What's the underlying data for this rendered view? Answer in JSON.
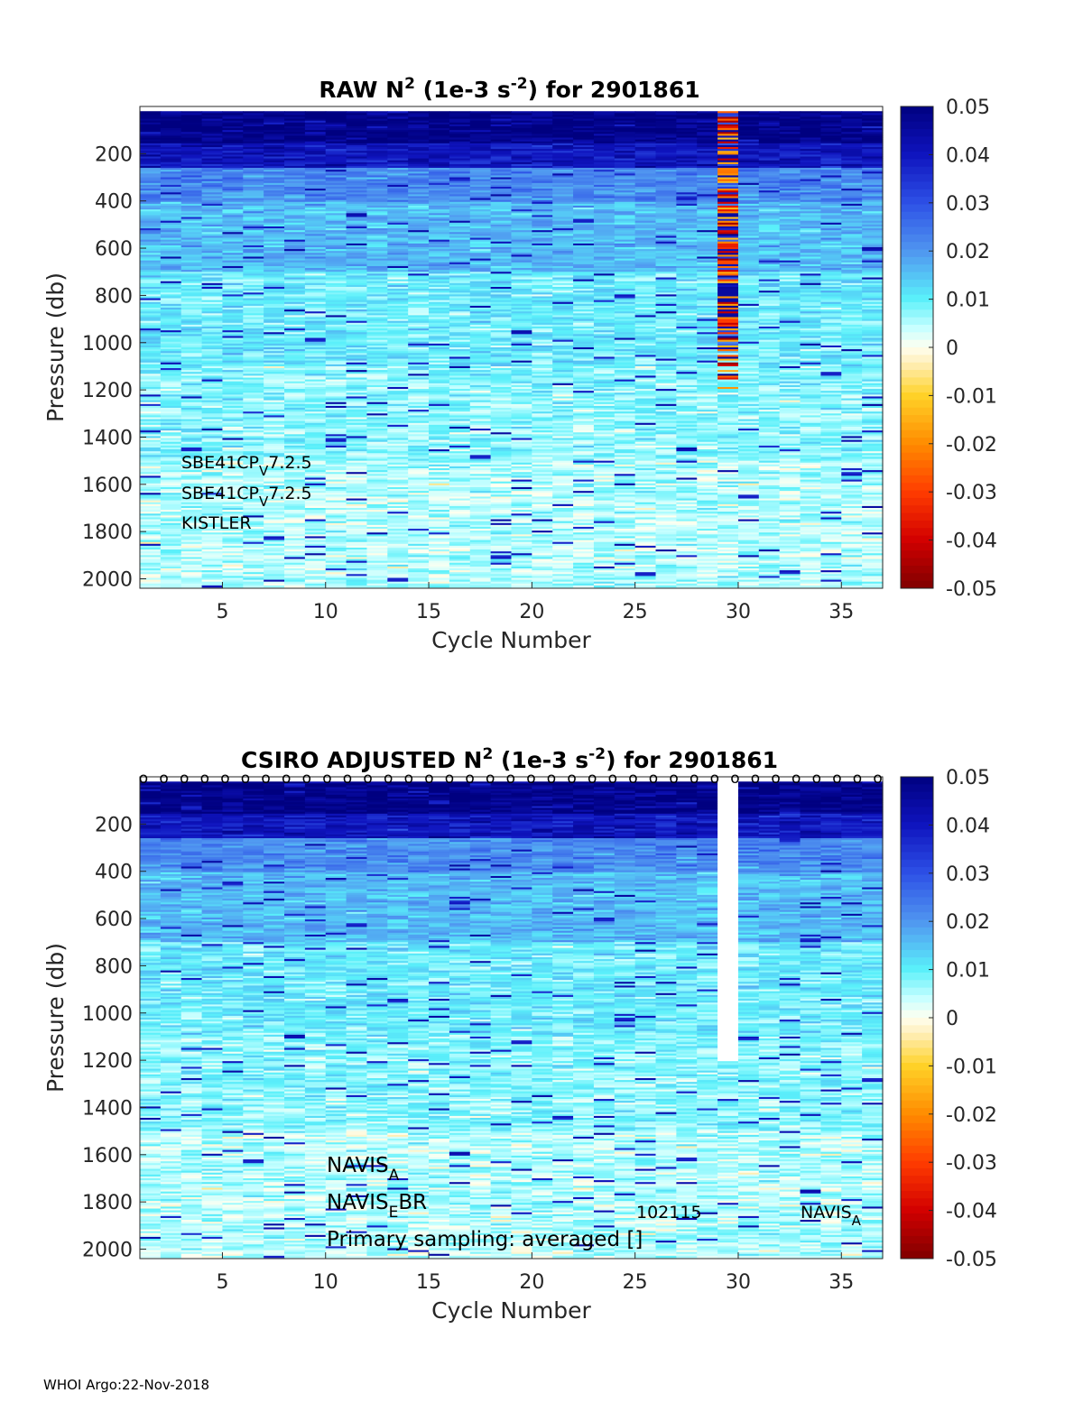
{
  "footer": "WHOI Argo:22-Nov-2018",
  "chart_data": [
    {
      "type": "heatmap",
      "title": {
        "prefix": "RAW N",
        "sup1": "2",
        "mid": " (1e-3 s",
        "sup2": "-2",
        "suffix": ") for 2901861"
      },
      "xlabel": "Cycle Number",
      "ylabel": "Pressure (db)",
      "xlim": [
        1,
        37
      ],
      "ylim": [
        2040,
        0
      ],
      "xticks": [
        5,
        10,
        15,
        20,
        25,
        30,
        35
      ],
      "yticks": [
        200,
        400,
        600,
        800,
        1000,
        1200,
        1400,
        1600,
        1800,
        2000
      ],
      "colorbar": {
        "min": -0.05,
        "max": 0.05,
        "ticks": [
          "0.05",
          "0.04",
          "0.03",
          "0.02",
          "0.01",
          "0",
          "-0.01",
          "-0.02",
          "-0.03",
          "-0.04",
          "-0.05"
        ],
        "colormap": "blue-cyan-white-yellow-red"
      },
      "cycles": 36,
      "anomaly_cycle": 29,
      "annotations": [
        {
          "main": "SBE41CP",
          "sub": "V",
          "rest": "7.2.5"
        },
        {
          "main": "SBE41CP",
          "sub": "V",
          "rest": "7.2.5"
        },
        {
          "main": "KISTLER",
          "sub": "",
          "rest": ""
        }
      ]
    },
    {
      "type": "heatmap",
      "title": {
        "prefix": "CSIRO  ADJUSTED N",
        "sup1": "2",
        "mid": " (1e-3 s",
        "sup2": "-2",
        "suffix": ") for 2901861"
      },
      "xlabel": "Cycle Number",
      "ylabel": "Pressure (db)",
      "xlim": [
        1,
        37
      ],
      "ylim": [
        2040,
        0
      ],
      "xticks": [
        5,
        10,
        15,
        20,
        25,
        30,
        35
      ],
      "yticks": [
        200,
        400,
        600,
        800,
        1000,
        1200,
        1400,
        1600,
        1800,
        2000
      ],
      "colorbar": {
        "min": -0.05,
        "max": 0.05,
        "ticks": [
          "0.05",
          "0.04",
          "0.03",
          "0.02",
          "0.01",
          "0",
          "-0.01",
          "-0.02",
          "-0.03",
          "-0.04",
          "-0.05"
        ],
        "colormap": "blue-cyan-white-yellow-red"
      },
      "cycles": 36,
      "missing_cycle": 29,
      "missing_to_pressure": 1200,
      "marker": "o",
      "annotations": [
        {
          "main": "NAVIS",
          "sub": "A",
          "rest": ""
        },
        {
          "main": "NAVIS",
          "sub": "E",
          "rest": "BR"
        },
        {
          "main": "Primary sampling: averaged []",
          "sub": "",
          "rest": ""
        }
      ],
      "side_labels": [
        {
          "main": "102115",
          "sub": ""
        },
        {
          "main": "NAVIS",
          "sub": "A"
        }
      ]
    }
  ]
}
